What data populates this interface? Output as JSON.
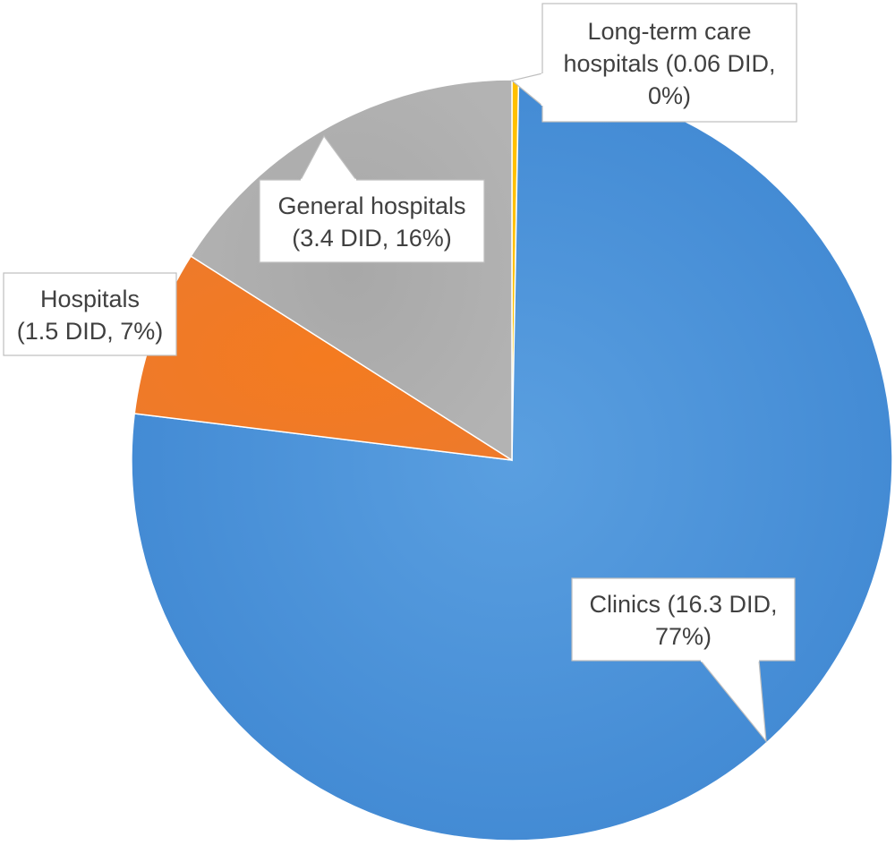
{
  "chart_data": {
    "type": "pie",
    "title": "",
    "start_angle_deg": 0,
    "direction": "clockwise",
    "slices": [
      {
        "name": "Long-term care hospitals",
        "value": 0.06,
        "unit": "DID",
        "percent": 0,
        "color": "#FFC000",
        "label_lines": [
          "Long-term care",
          "hospitals (0.06 DID,",
          "0%)"
        ]
      },
      {
        "name": "Clinics",
        "value": 16.3,
        "unit": "DID",
        "percent": 77,
        "color": "#4E94DA",
        "label_lines": [
          "Clinics (16.3 DID,",
          "77%)"
        ]
      },
      {
        "name": "Hospitals",
        "value": 1.5,
        "unit": "DID",
        "percent": 7,
        "color": "#F07A24",
        "label_lines": [
          "Hospitals",
          "(1.5 DID, 7%)"
        ]
      },
      {
        "name": "General hospitals",
        "value": 3.4,
        "unit": "DID",
        "percent": 16,
        "color": "#ABABAB",
        "label_lines": [
          "General hospitals",
          "(3.4 DID, 16%)"
        ]
      }
    ]
  }
}
